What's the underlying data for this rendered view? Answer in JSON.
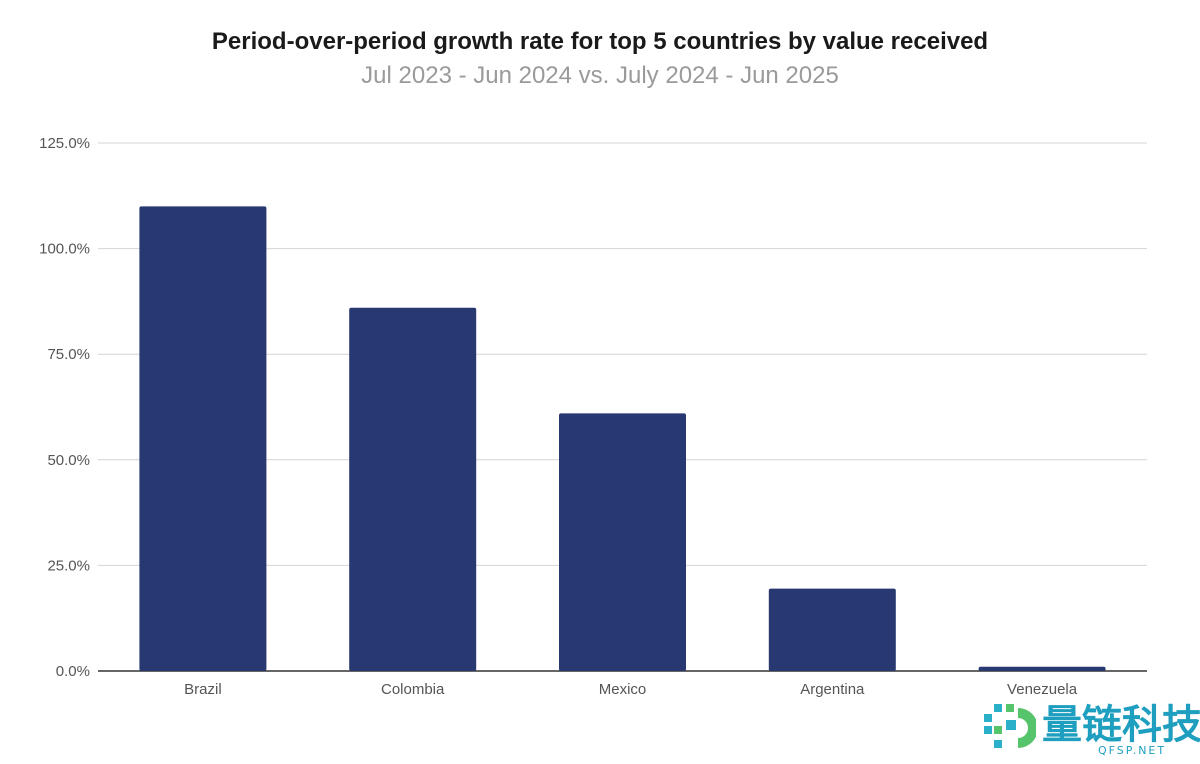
{
  "chart_data": {
    "type": "bar",
    "title": "Period-over-period growth rate for top 5 countries by value received",
    "subtitle": "Jul 2023 - Jun 2024 vs. July 2024 - Jun 2025",
    "categories": [
      "Brazil",
      "Colombia",
      "Mexico",
      "Argentina",
      "Venezuela"
    ],
    "values": [
      110.0,
      86.0,
      61.0,
      19.5,
      1.0
    ],
    "ylim": [
      0,
      125
    ],
    "yticks": [
      0,
      25,
      50,
      75,
      100,
      125
    ],
    "ytick_labels": [
      "0.0%",
      "25.0%",
      "50.0%",
      "75.0%",
      "100.0%",
      "125.0%"
    ],
    "grid": true,
    "bar_color": "#283870"
  },
  "watermark": {
    "text": "量链科技",
    "sub": "QFSP.NET",
    "color": "#1f9fbf"
  }
}
